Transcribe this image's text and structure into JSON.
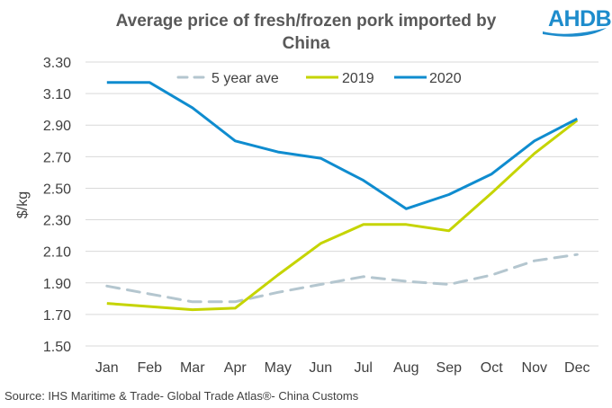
{
  "logo": {
    "text": "AHDB",
    "color": "#1d8ccc"
  },
  "source": "Source: IHS Maritime & Trade- Global Trade Atlas®- China Customs",
  "chart_data": {
    "type": "line",
    "title_lines": [
      "Average price of fresh/frozen pork imported by",
      "China"
    ],
    "xlabel": "",
    "ylabel": "$/kg",
    "categories": [
      "Jan",
      "Feb",
      "Mar",
      "Apr",
      "May",
      "Jun",
      "Jul",
      "Aug",
      "Sep",
      "Oct",
      "Nov",
      "Dec"
    ],
    "ylim": [
      1.5,
      3.3
    ],
    "yticks": [
      "3.30",
      "3.10",
      "2.90",
      "2.70",
      "2.50",
      "2.30",
      "2.10",
      "1.90",
      "1.70",
      "1.50"
    ],
    "grid": true,
    "legend_position": "top",
    "series": [
      {
        "name": "5 year ave",
        "color": "#b4c6cf",
        "dashed": true,
        "values": [
          1.88,
          1.83,
          1.78,
          1.78,
          1.84,
          1.89,
          1.94,
          1.91,
          1.89,
          1.95,
          2.04,
          2.08
        ]
      },
      {
        "name": "2019",
        "color": "#c5d400",
        "dashed": false,
        "values": [
          1.77,
          1.75,
          1.73,
          1.74,
          1.95,
          2.15,
          2.27,
          2.27,
          2.23,
          2.47,
          2.72,
          2.93
        ]
      },
      {
        "name": "2020",
        "color": "#0f8ccf",
        "dashed": false,
        "values": [
          3.17,
          3.17,
          3.01,
          2.8,
          2.73,
          2.69,
          2.55,
          2.37,
          2.46,
          2.59,
          2.8,
          2.94
        ]
      }
    ]
  }
}
